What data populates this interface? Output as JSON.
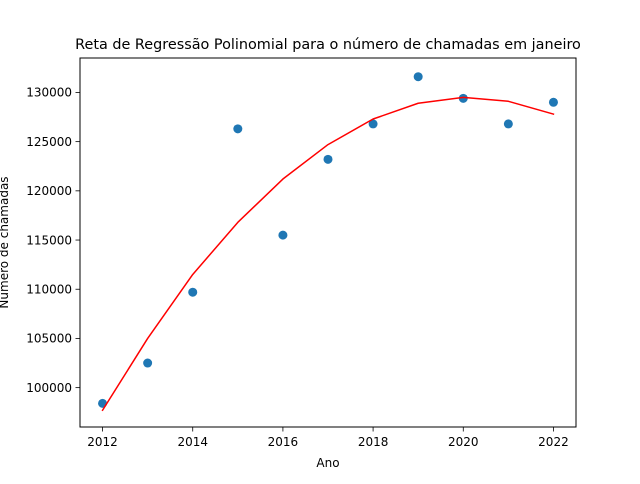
{
  "chart_data": {
    "type": "scatter",
    "title": "Reta de Regressão Polinomial para o número de chamadas em janeiro",
    "xlabel": "Ano",
    "ylabel": "Número de chamadas",
    "xlim": [
      2011.5,
      2022.5
    ],
    "ylim": [
      96000,
      133500
    ],
    "xticks": [
      2012,
      2014,
      2016,
      2018,
      2020,
      2022
    ],
    "yticks": [
      100000,
      105000,
      110000,
      115000,
      120000,
      125000,
      130000
    ],
    "grid": false,
    "legend": "none",
    "series": [
      {
        "kind": "scatter",
        "color": "#1f77b4",
        "x": [
          2012,
          2013,
          2014,
          2015,
          2016,
          2017,
          2018,
          2019,
          2020,
          2021,
          2022
        ],
        "y": [
          98400,
          102500,
          109700,
          126300,
          115500,
          123200,
          126800,
          131600,
          129400,
          126800,
          129000
        ]
      },
      {
        "kind": "line",
        "color": "#ff0000",
        "x": [
          2012,
          2013,
          2014,
          2015,
          2016,
          2017,
          2018,
          2019,
          2020,
          2021,
          2022
        ],
        "y": [
          97700,
          105000,
          111500,
          116800,
          121200,
          124700,
          127300,
          128900,
          129500,
          129100,
          127800
        ]
      }
    ]
  }
}
